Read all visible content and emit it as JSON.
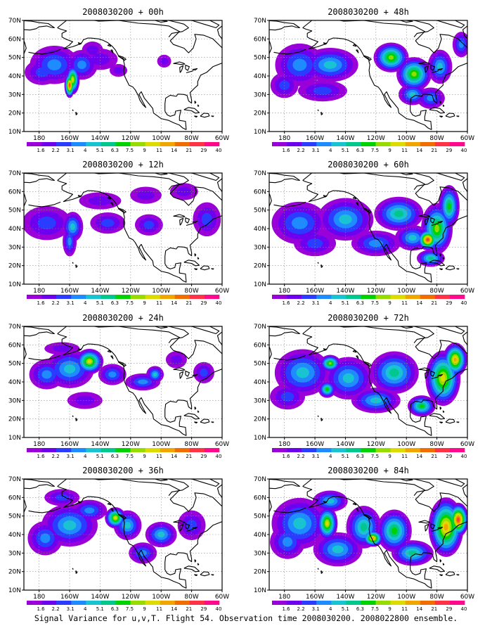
{
  "panels": [
    {
      "title": "2008030200 + 00h",
      "lead_hours": 0
    },
    {
      "title": "2008030200 + 12h",
      "lead_hours": 12
    },
    {
      "title": "2008030200 + 24h",
      "lead_hours": 24
    },
    {
      "title": "2008030200 + 36h",
      "lead_hours": 36
    },
    {
      "title": "2008030200 + 48h",
      "lead_hours": 48
    },
    {
      "title": "2008030200 + 60h",
      "lead_hours": 60
    },
    {
      "title": "2008030200 + 72h",
      "lead_hours": 72
    },
    {
      "title": "2008030200 + 84h",
      "lead_hours": 84
    }
  ],
  "lon_labels": [
    "180",
    "160W",
    "140W",
    "120W",
    "100W",
    "80W",
    "60W"
  ],
  "lat_labels": [
    "10N",
    "20N",
    "30N",
    "40N",
    "50N",
    "60N",
    "70N"
  ],
  "colorbar": {
    "colors": [
      "#9a00d8",
      "#6e00f0",
      "#2a3cff",
      "#1e8cff",
      "#19c3d2",
      "#00c88c",
      "#00d200",
      "#96dc00",
      "#dcdc00",
      "#f0a500",
      "#f06e00",
      "#ff3246",
      "#ff0a8c"
    ],
    "labels": [
      "1.6",
      "2.2",
      "3.1",
      "4",
      "5.1",
      "6.3",
      "7.5",
      "9",
      "11",
      "14",
      "21",
      "29",
      "40"
    ]
  },
  "caption": "Signal Variance for u,v,T. Flight 54. Observation time 2008030200. 2008022800 ensemble."
}
